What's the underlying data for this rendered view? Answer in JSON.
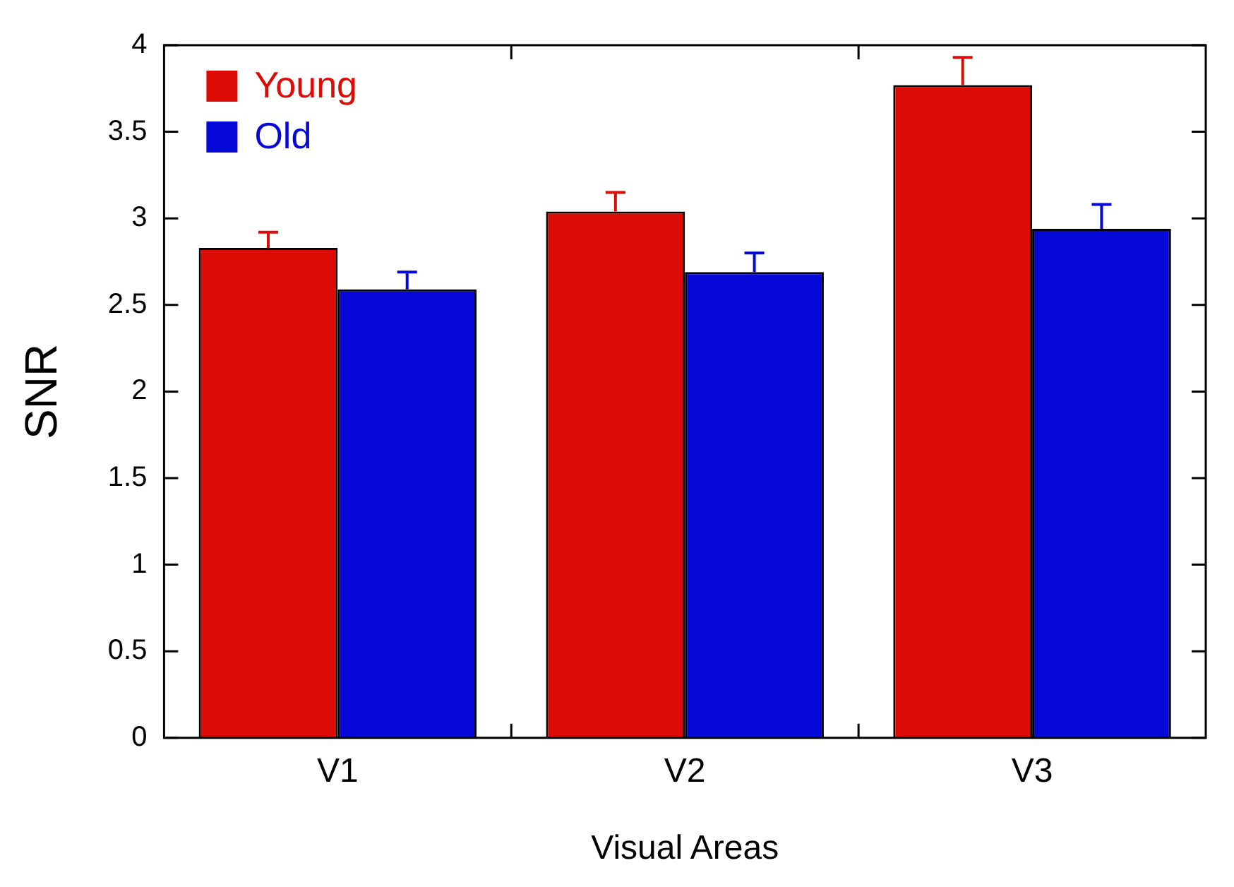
{
  "chart_data": {
    "type": "bar",
    "xlabel": "Visual Areas",
    "ylabel": "SNR",
    "categories": [
      "V1",
      "V2",
      "V3"
    ],
    "series": [
      {
        "name": "Young",
        "color": "#dd0b06",
        "values": [
          2.83,
          3.04,
          3.77
        ],
        "errors": [
          [
            2.83,
            2.92
          ],
          [
            3.04,
            3.15
          ],
          [
            3.77,
            3.93
          ]
        ]
      },
      {
        "name": "Old",
        "color": "#0508d6",
        "values": [
          2.59,
          2.69,
          2.94
        ],
        "errors": [
          [
            2.59,
            2.69
          ],
          [
            2.69,
            2.8
          ],
          [
            2.94,
            3.08
          ]
        ]
      }
    ],
    "ylim": [
      0,
      4
    ],
    "yticks": [
      0,
      0.5,
      1,
      1.5,
      2,
      2.5,
      3,
      3.5,
      4
    ],
    "grid": false,
    "legend": "top left"
  }
}
